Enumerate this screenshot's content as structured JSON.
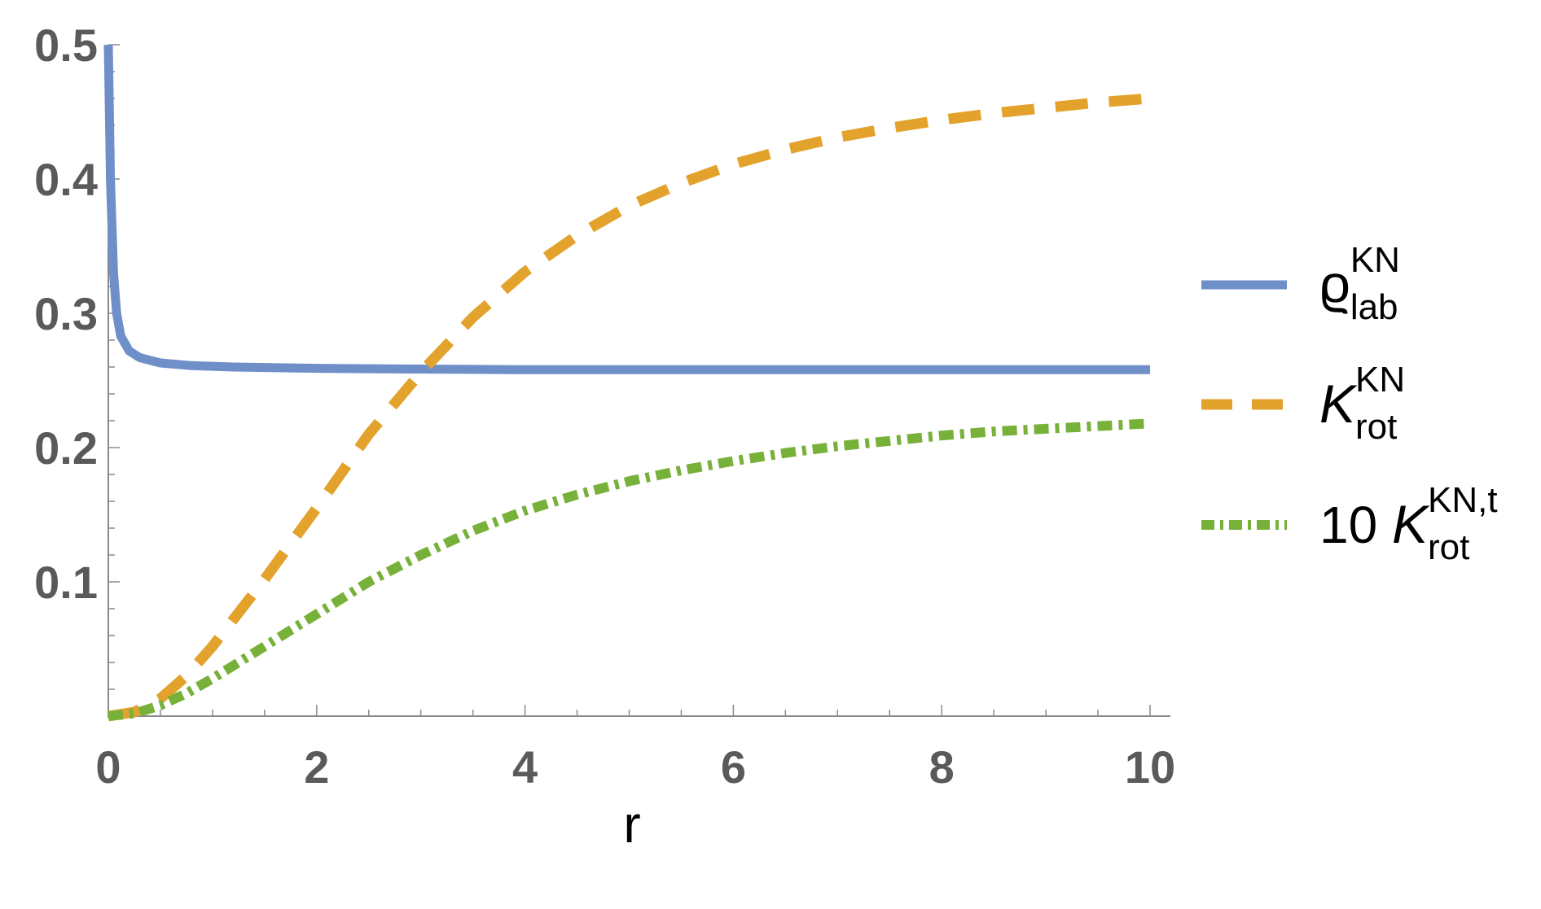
{
  "chart_data": {
    "type": "line",
    "title": "",
    "xlabel": "r",
    "ylabel": "",
    "xlim": [
      0,
      10
    ],
    "ylim": [
      0,
      0.5
    ],
    "x_ticks": [
      0,
      2,
      4,
      6,
      8,
      10
    ],
    "x_tick_labels": [
      "0",
      "2",
      "4",
      "6",
      "8",
      "10"
    ],
    "y_ticks": [
      0.1,
      0.2,
      0.3,
      0.4,
      0.5
    ],
    "y_tick_labels": [
      "0.1",
      "0.2",
      "0.3",
      "0.4",
      "0.5"
    ],
    "grid": false,
    "legend_position": "right",
    "series": [
      {
        "legend": {
          "prefix": "",
          "symbol": "ϱ",
          "sup": "KN",
          "sub": "lab"
        },
        "color": "#6f8fc8",
        "style": "solid",
        "x": [
          0.0,
          0.02,
          0.05,
          0.08,
          0.12,
          0.2,
          0.3,
          0.5,
          0.8,
          1.2,
          2,
          3,
          4,
          5,
          6,
          7,
          8,
          9,
          10
        ],
        "y": [
          0.5,
          0.4,
          0.33,
          0.3,
          0.283,
          0.272,
          0.267,
          0.263,
          0.261,
          0.26,
          0.259,
          0.2585,
          0.258,
          0.258,
          0.258,
          0.258,
          0.258,
          0.258,
          0.258
        ]
      },
      {
        "legend": {
          "prefix": "",
          "symbol": "K",
          "sup": "KN",
          "sub": "rot"
        },
        "color": "#e3a22c",
        "style": "dashed",
        "x": [
          0,
          0.25,
          0.5,
          0.75,
          1,
          1.5,
          2,
          2.5,
          3,
          3.5,
          4,
          4.5,
          5,
          5.5,
          6,
          6.5,
          7,
          7.5,
          8,
          8.5,
          9,
          9.5,
          10
        ],
        "y": [
          0.0,
          0.003,
          0.013,
          0.03,
          0.052,
          0.102,
          0.155,
          0.21,
          0.256,
          0.297,
          0.331,
          0.358,
          0.38,
          0.397,
          0.411,
          0.422,
          0.431,
          0.438,
          0.444,
          0.449,
          0.453,
          0.457,
          0.46
        ]
      },
      {
        "legend": {
          "prefix": "10 ",
          "symbol": "K",
          "sup": "KN,t",
          "sub": "rot"
        },
        "color": "#78b13a",
        "style": "dashdot",
        "x": [
          0,
          0.25,
          0.5,
          0.75,
          1,
          1.5,
          2,
          2.5,
          3,
          3.5,
          4,
          4.5,
          5,
          5.5,
          6,
          6.5,
          7,
          7.5,
          8,
          8.5,
          9,
          9.5,
          10
        ],
        "y": [
          0.0,
          0.002,
          0.008,
          0.017,
          0.028,
          0.052,
          0.076,
          0.1,
          0.12,
          0.138,
          0.153,
          0.165,
          0.175,
          0.183,
          0.19,
          0.196,
          0.201,
          0.205,
          0.209,
          0.212,
          0.214,
          0.216,
          0.218
        ]
      }
    ]
  }
}
